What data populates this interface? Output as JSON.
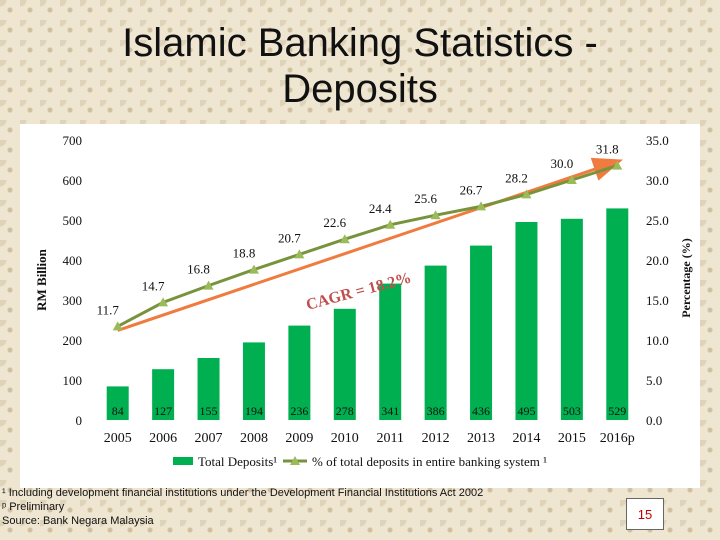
{
  "slide": {
    "title": "Islamic Banking Statistics - Deposits",
    "page_number": "15"
  },
  "footnotes": {
    "note1": "¹ Including development financial institutions under the Development Financial Institutions Act 2002",
    "note2": "ᵖ Preliminary",
    "source": "Source: Bank Negara Malaysia"
  },
  "colors": {
    "bar": "#00b050",
    "line": "#77933c",
    "marker": "#9bbb59",
    "trend_arrow": "#f07b3f",
    "page_number": "#c00000"
  },
  "chart_data": {
    "type": "bar",
    "categories": [
      "2005",
      "2006",
      "2007",
      "2008",
      "2009",
      "2010",
      "2011",
      "2012",
      "2013",
      "2014",
      "2015",
      "2016p"
    ],
    "ylabel": "RM Billion",
    "y2label": "Percentage (%)",
    "ylim": [
      0,
      700
    ],
    "y2lim": [
      0,
      35
    ],
    "yticks": [
      "0",
      "100",
      "200",
      "300",
      "400",
      "500",
      "600",
      "700"
    ],
    "y2ticks": [
      "0.0",
      "5.0",
      "10.0",
      "15.0",
      "20.0",
      "25.0",
      "30.0",
      "35.0"
    ],
    "grid": false,
    "legend_position": "bottom",
    "series": [
      {
        "name": "Total Deposits¹",
        "type": "bar",
        "axis": "left",
        "values": [
          84,
          127,
          155,
          194,
          236,
          278,
          341,
          386,
          436,
          495,
          503,
          529
        ],
        "labels": [
          "84",
          "127",
          "155",
          "194",
          "236",
          "278",
          "341",
          "386",
          "436",
          "495",
          "503",
          "529"
        ]
      },
      {
        "name": "% of total deposits in entire banking system ¹",
        "type": "line",
        "axis": "right",
        "values": [
          11.7,
          14.7,
          16.8,
          18.8,
          20.7,
          22.6,
          24.4,
          25.6,
          26.7,
          28.2,
          30.0,
          31.8
        ],
        "labels": [
          "11.7",
          "14.7",
          "16.8",
          "18.8",
          "20.7",
          "22.6",
          "24.4",
          "25.6",
          "26.7",
          "28.2",
          "30.0",
          "31.8"
        ]
      }
    ],
    "annotation": "CAGR = 18.2%"
  }
}
